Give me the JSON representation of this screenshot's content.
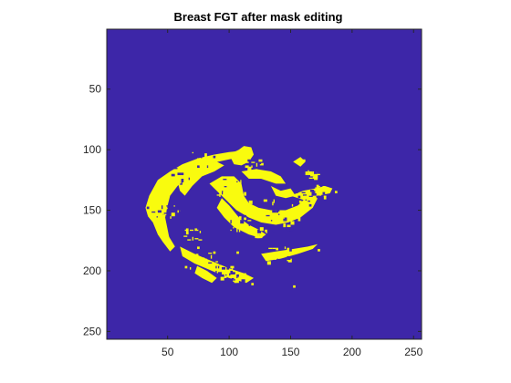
{
  "figure": {
    "title": "Breast FGT after mask editing"
  },
  "chart_data": {
    "type": "heatmap",
    "title": "Breast FGT after mask editing",
    "xlabel": "",
    "ylabel": "",
    "xlim": [
      0.5,
      256.5
    ],
    "ylim": [
      0.5,
      256.5
    ],
    "y_direction": "reverse",
    "xticks": [
      50,
      100,
      150,
      200,
      250
    ],
    "yticks": [
      50,
      100,
      150,
      200,
      250
    ],
    "xtick_labels": [
      "50",
      "100",
      "150",
      "200",
      "250"
    ],
    "ytick_labels": [
      "50",
      "100",
      "150",
      "200",
      "250"
    ],
    "grid": false,
    "legend": "none",
    "values": [
      0,
      1
    ],
    "colors": {
      "background": "#3d26a8",
      "mask": "#f9fb0e",
      "axis": "#262626"
    }
  }
}
